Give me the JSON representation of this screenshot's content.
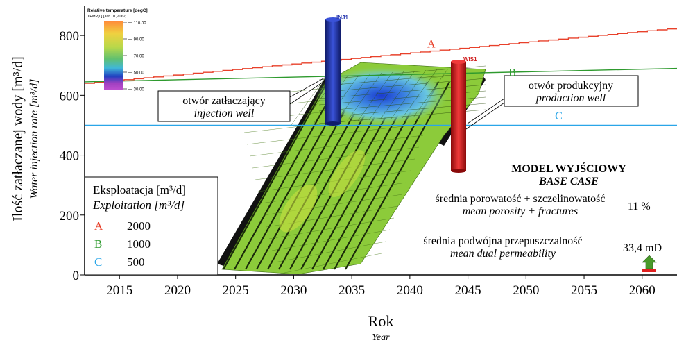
{
  "chart_data": {
    "type": "line",
    "title": "",
    "xlabel": "Rok",
    "xlabel_en": "Year",
    "ylabel": "Ilość zatłaczanej wody [m³/d]",
    "ylabel_en": "Water injection rate [m³/d]",
    "xlim": [
      2012,
      2063
    ],
    "ylim": [
      0,
      900
    ],
    "xticks": [
      2015,
      2020,
      2025,
      2030,
      2035,
      2040,
      2045,
      2050,
      2055,
      2060
    ],
    "yticks": [
      0,
      200,
      400,
      600,
      800
    ],
    "grid": false,
    "series": [
      {
        "name": "A",
        "color": "#e8402a",
        "x": [
          2012,
          2063
        ],
        "y": [
          640,
          825
        ]
      },
      {
        "name": "B",
        "color": "#2e9a2e",
        "x": [
          2012,
          2063
        ],
        "y": [
          645,
          690
        ]
      },
      {
        "name": "C",
        "color": "#2aa6e8",
        "x": [
          2012,
          2063
        ],
        "y": [
          500,
          500
        ]
      }
    ],
    "legend": {
      "title": "Eksploatacja [m³/d]",
      "title_en": "Exploitation [m³/d]",
      "entries": [
        {
          "label": "A",
          "value": "2000",
          "color": "#e8402a"
        },
        {
          "label": "B",
          "value": "1000",
          "color": "#2e9a2e"
        },
        {
          "label": "C",
          "value": "500",
          "color": "#2aa6e8"
        }
      ]
    },
    "colorbar": {
      "title": "Relative temperature [degC]",
      "subtitle": "TEMP[0] [Jan 01,2062]",
      "ticks": [
        "110.00",
        "90.00",
        "70.00",
        "50.00",
        "30.00"
      ]
    },
    "annotations": {
      "injection_well_pl": "otwór zatłaczający",
      "injection_well_en": "injection well",
      "production_well_pl": "otwór produkcyjny",
      "production_well_en": "production well",
      "inj_label": "INJ1",
      "wis_label": "WIS1",
      "model_title_pl": "MODEL WYJŚCIOWY",
      "model_title_en": "BASE CASE",
      "porosity_pl": "średnia porowatość + szczelinowatość",
      "porosity_en": "mean porosity + fractures",
      "porosity_value": "11 %",
      "perm_pl": "średnia podwójna przepuszczalność",
      "perm_en": "mean dual permeability",
      "perm_value": "33,4 mD"
    }
  }
}
